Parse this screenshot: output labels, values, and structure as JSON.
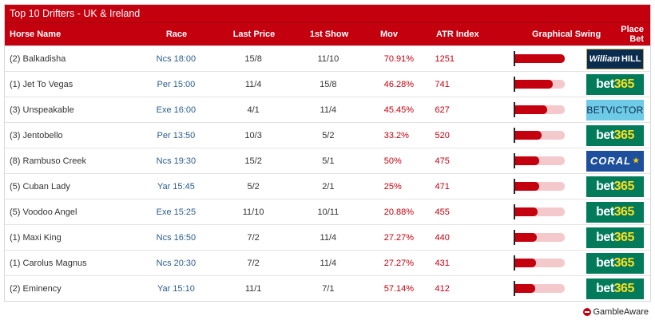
{
  "title": "Top 10 Drifters - UK & Ireland",
  "headers": {
    "horse": "Horse Name",
    "race": "Race",
    "last_price": "Last Price",
    "first_show": "1st Show",
    "mov": "Mov",
    "atr_index": "ATR Index",
    "swing": "Graphical Swing",
    "place_bet": "Place Bet"
  },
  "colors": {
    "accent": "#c4000f",
    "race_link": "#2a5d8f",
    "bar_track": "#f3c9cc"
  },
  "rows": [
    {
      "horse": "(2) Balkadisha",
      "race": "Ncs 18:00",
      "last": "15/8",
      "show": "11/10",
      "mov": "70.91%",
      "atr": "1251",
      "swing": 1.0,
      "bookmaker": "William HILL"
    },
    {
      "horse": "(1) Jet To Vegas",
      "race": "Per 15:00",
      "last": "11/4",
      "show": "15/8",
      "mov": "46.28%",
      "atr": "741",
      "swing": 0.76,
      "bookmaker": "bet365"
    },
    {
      "horse": "(3) Unspeakable",
      "race": "Exe 16:00",
      "last": "4/1",
      "show": "11/4",
      "mov": "45.45%",
      "atr": "627",
      "swing": 0.64,
      "bookmaker": "BETVICTOR"
    },
    {
      "horse": "(3) Jentobello",
      "race": "Per 13:50",
      "last": "10/3",
      "show": "5/2",
      "mov": "33.2%",
      "atr": "520",
      "swing": 0.53,
      "bookmaker": "bet365"
    },
    {
      "horse": "(8) Rambuso Creek",
      "race": "Ncs 19:30",
      "last": "15/2",
      "show": "5/1",
      "mov": "50%",
      "atr": "475",
      "swing": 0.48,
      "bookmaker": "CORAL"
    },
    {
      "horse": "(5) Cuban Lady",
      "race": "Yar 15:45",
      "last": "5/2",
      "show": "2/1",
      "mov": "25%",
      "atr": "471",
      "swing": 0.48,
      "bookmaker": "bet365"
    },
    {
      "horse": "(5) Voodoo Angel",
      "race": "Exe 15:25",
      "last": "11/10",
      "show": "10/11",
      "mov": "20.88%",
      "atr": "455",
      "swing": 0.46,
      "bookmaker": "bet365"
    },
    {
      "horse": "(1) Maxi King",
      "race": "Ncs 16:50",
      "last": "7/2",
      "show": "11/4",
      "mov": "27.27%",
      "atr": "440",
      "swing": 0.44,
      "bookmaker": "bet365"
    },
    {
      "horse": "(1) Carolus Magnus",
      "race": "Ncs 20:30",
      "last": "7/2",
      "show": "11/4",
      "mov": "27.27%",
      "atr": "431",
      "swing": 0.43,
      "bookmaker": "bet365"
    },
    {
      "horse": "(2) Eminency",
      "race": "Yar 15:10",
      "last": "11/1",
      "show": "7/1",
      "mov": "57.14%",
      "atr": "412",
      "swing": 0.41,
      "bookmaker": "bet365"
    }
  ],
  "footer": {
    "label": "GambleAware",
    "icon": "gambleaware-icon"
  }
}
